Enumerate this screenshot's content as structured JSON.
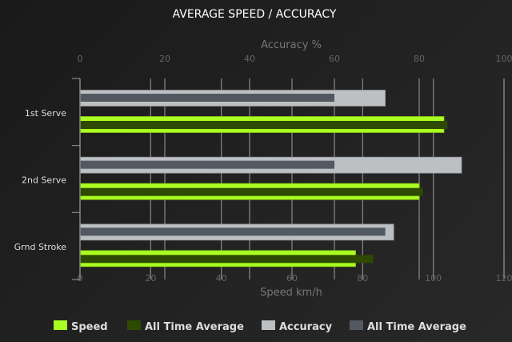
{
  "chart_data": {
    "type": "bar",
    "orientation": "horizontal",
    "title": "AVERAGE SPEED / ACCURACY",
    "categories": [
      "1st Serve",
      "2nd Serve",
      "Grnd Stroke"
    ],
    "top_axis": {
      "label": "Accuracy %",
      "range": [
        0,
        100
      ],
      "ticks": [
        "0",
        "20",
        "40",
        "60",
        "80",
        "100"
      ]
    },
    "bottom_axis": {
      "label": "Speed km/h",
      "range": [
        0,
        120
      ],
      "ticks": [
        "0",
        "20",
        "40",
        "60",
        "80",
        "100",
        "120"
      ]
    },
    "grid": true,
    "legend_placement": "bottom",
    "series": [
      {
        "name": "Speed",
        "axis": "bottom",
        "color": "#aaff22",
        "values": [
          103,
          96,
          78
        ]
      },
      {
        "name": "All Time Average",
        "axis": "bottom",
        "color": "#2e4a00",
        "values": [
          104,
          97,
          83
        ]
      },
      {
        "name": "Accuracy",
        "axis": "top",
        "color": "#bcc0c3",
        "values": [
          72,
          90,
          74
        ]
      },
      {
        "name": "All Time Average",
        "axis": "top",
        "color": "#535961",
        "values": [
          60,
          60,
          72
        ]
      }
    ]
  }
}
